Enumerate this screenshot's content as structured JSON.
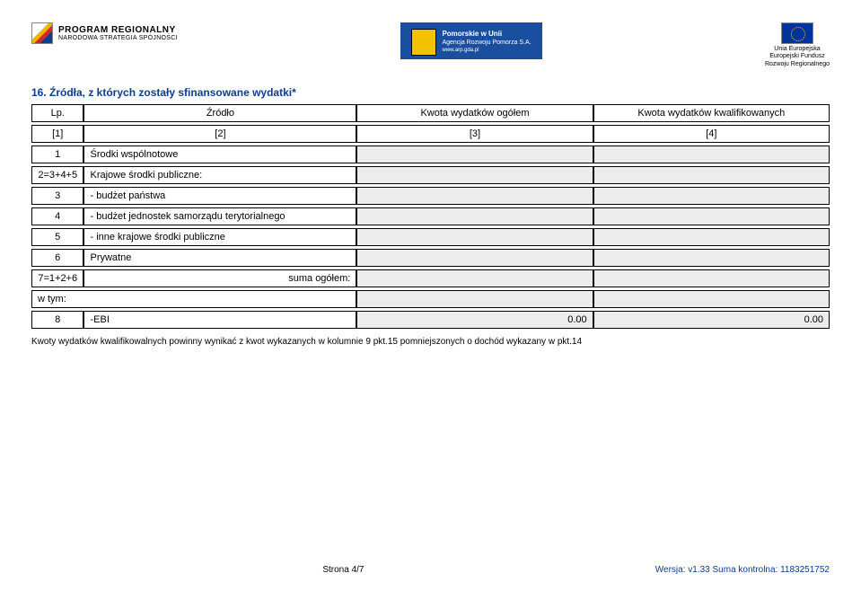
{
  "header": {
    "left_title": "PROGRAM REGIONALNY",
    "left_sub": "NARODOWA STRATEGIA SPÓJNOŚCI",
    "center_line1": "Pomorskie w Unii",
    "center_line2": "Agencja Rozwoju Pomorza S.A.",
    "center_url": "www.arp.gda.pl",
    "right_l1": "Unia Europejska",
    "right_l2": "Europejski Fundusz",
    "right_l3": "Rozwoju Regionalnego"
  },
  "section_title": "16. Źródła, z których zostały sfinansowane wydatki*",
  "table": {
    "head": {
      "lp": "Lp.",
      "src": "Źródło",
      "c3": "Kwota wydatków ogółem",
      "c4": "Kwota wydatków kwalifikowanych"
    },
    "sub": {
      "lp": "[1]",
      "src": "[2]",
      "c3": "[3]",
      "c4": "[4]"
    },
    "rows": [
      {
        "lp": "1",
        "src": "Środki wspólnotowe"
      },
      {
        "lp": "2=3+4+5",
        "src": "Krajowe środki publiczne:"
      },
      {
        "lp": "3",
        "src": "- budżet państwa"
      },
      {
        "lp": "4",
        "src": "- budżet jednostek samorządu terytorialnego"
      },
      {
        "lp": "5",
        "src": "- inne krajowe środki publiczne"
      },
      {
        "lp": "6",
        "src": "Prywatne"
      },
      {
        "lp": "7=1+2+6",
        "src": "suma ogółem:",
        "align": "right"
      },
      {
        "src": "w tym:"
      },
      {
        "lp": "8",
        "src": "-EBI",
        "v3": "0.00",
        "v4": "0.00"
      }
    ]
  },
  "note": "Kwoty wydatków kwalifikowalnych powinny wynikać z kwot wykazanych w kolumnie 9 pkt.15 pomniejszonych o dochód wykazany w pkt.14",
  "footer": {
    "page": "Strona 4/7",
    "version": "Wersja: v1.33 Suma kontrolna: 1183251752"
  }
}
